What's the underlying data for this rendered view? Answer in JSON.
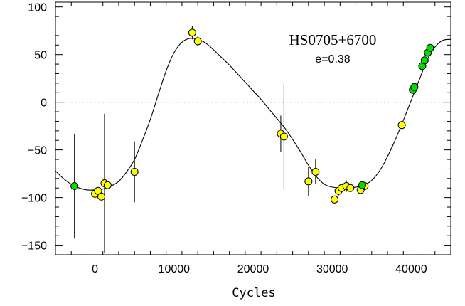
{
  "chart_data": {
    "type": "scatter",
    "title": "HS0705+6700",
    "subtitle": "e=0.38",
    "xlabel": "Cycles",
    "ylabel": "",
    "xlim": [
      -5000,
      45000
    ],
    "ylim": [
      -160,
      105
    ],
    "xticks": [
      {
        "value": 0,
        "label": "0"
      },
      {
        "value": 10000,
        "label": "10000"
      },
      {
        "value": 20000,
        "label": "20000"
      },
      {
        "value": 30000,
        "label": "30000"
      },
      {
        "value": 40000,
        "label": "40000"
      }
    ],
    "yticks": [
      {
        "value": 100,
        "label": "100"
      },
      {
        "value": 50,
        "label": "50"
      },
      {
        "value": 0,
        "label": "0"
      },
      {
        "value": -50,
        "label": "−50"
      },
      {
        "value": -100,
        "label": "−100"
      },
      {
        "value": -150,
        "label": "−150"
      }
    ],
    "zero_line": true,
    "fit_curve": {
      "description": "eccentric orbit model",
      "x": [
        -5000,
        -4000,
        -3000,
        -2000,
        -1000,
        0,
        1000,
        2000,
        3000,
        4000,
        5000,
        6000,
        7000,
        8000,
        9000,
        10000,
        11000,
        12000,
        13000,
        14000,
        15000,
        16000,
        17000,
        18000,
        19000,
        20000,
        21000,
        22000,
        23000,
        24000,
        25000,
        26000,
        27000,
        28000,
        29000,
        30000,
        31000,
        32000,
        33000,
        34000,
        35000,
        36000,
        37000,
        38000,
        39000,
        40000,
        41000,
        42000,
        43000,
        44000,
        45000
      ],
      "y": [
        -72,
        -80,
        -86,
        -90,
        -92,
        -92,
        -91,
        -88,
        -83,
        -73,
        -60,
        -40,
        -18,
        8,
        33,
        52,
        63,
        67,
        66,
        62,
        55,
        47,
        39,
        30,
        21,
        12,
        3,
        -7,
        -17,
        -27,
        -39,
        -52,
        -66,
        -78,
        -86,
        -89,
        -90,
        -90,
        -89,
        -87,
        -82,
        -72,
        -57,
        -39,
        -19,
        2,
        23,
        44,
        58,
        65,
        66
      ]
    },
    "series": [
      {
        "name": "",
        "color": "#ffff00",
        "points": [
          {
            "x": 0,
            "y": -96,
            "err": 0
          },
          {
            "x": 400,
            "y": -93,
            "err": 0
          },
          {
            "x": 800,
            "y": -99,
            "err": 3
          },
          {
            "x": 1200,
            "y": -85,
            "err": 73
          },
          {
            "x": 1600,
            "y": -87,
            "err": 0
          },
          {
            "x": 5000,
            "y": -73,
            "err": 32
          },
          {
            "x": 12300,
            "y": 73,
            "err": 7
          },
          {
            "x": 13000,
            "y": 64,
            "err": 5
          },
          {
            "x": 23500,
            "y": -33,
            "err": 19
          },
          {
            "x": 23900,
            "y": -36,
            "err": 55
          },
          {
            "x": 27000,
            "y": -83,
            "err": 15
          },
          {
            "x": 27900,
            "y": -73,
            "err": 13
          },
          {
            "x": 30300,
            "y": -102,
            "err": 4
          },
          {
            "x": 30800,
            "y": -93,
            "err": 5
          },
          {
            "x": 31200,
            "y": -90,
            "err": 4
          },
          {
            "x": 31800,
            "y": -88,
            "err": 6
          },
          {
            "x": 32300,
            "y": -90,
            "err": 4
          },
          {
            "x": 33600,
            "y": -92,
            "err": 2
          },
          {
            "x": 34100,
            "y": -88,
            "err": 2
          },
          {
            "x": 38800,
            "y": -24,
            "err": 2
          }
        ]
      },
      {
        "name": "",
        "color": "#00dd00",
        "points": [
          {
            "x": -2600,
            "y": -88,
            "err": 55
          },
          {
            "x": 33800,
            "y": -87,
            "err": 0
          },
          {
            "x": 40200,
            "y": 13,
            "err": 0
          },
          {
            "x": 40400,
            "y": 16,
            "err": 0
          },
          {
            "x": 41400,
            "y": 38,
            "err": 0
          },
          {
            "x": 41700,
            "y": 44,
            "err": 0
          },
          {
            "x": 42100,
            "y": 52,
            "err": 0
          },
          {
            "x": 42400,
            "y": 57,
            "err": 0
          }
        ]
      }
    ],
    "grid": false,
    "legend": "none"
  }
}
